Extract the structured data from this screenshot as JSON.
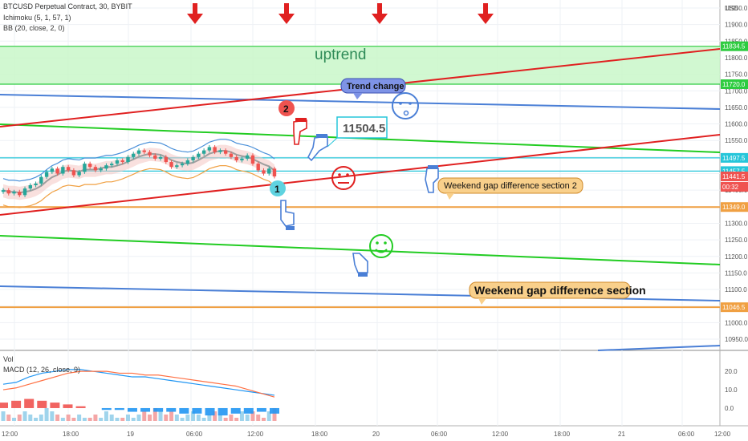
{
  "header": {
    "symbol_line": "BTCUSD Perpetual Contract, 30, BYBIT",
    "indicator_1": "Ichimoku (5, 1, 57, 1)",
    "indicator_2": "BB (20, close, 2, 0)"
  },
  "lower_pane": {
    "vol_label": "Vol",
    "macd_label": "MACD (12, 26, close, 9)"
  },
  "price_axis": {
    "unit_label": "USD",
    "ticks": [
      "11950.0",
      "11900.0",
      "11850.0",
      "11800.0",
      "11750.0",
      "11700.0",
      "11650.0",
      "11600.0",
      "11550.0",
      "11500.0",
      "11450.0",
      "11400.0",
      "11350.0",
      "11300.0",
      "11250.0",
      "11200.0",
      "11150.0",
      "11100.0",
      "11050.0",
      "11000.0",
      "10950.0"
    ],
    "markers": [
      {
        "text": "11834.5",
        "color": "#2ecc40"
      },
      {
        "text": "11720.0",
        "color": "#2ecc40"
      },
      {
        "text": "11497.5",
        "color": "#26c6da"
      },
      {
        "text": "11457.5",
        "color": "#26c6da"
      },
      {
        "text": "11441.5",
        "color": "#ef5350"
      },
      {
        "text": "00:32",
        "color": "#ef5350"
      },
      {
        "text": "11349.0",
        "color": "#f0a042"
      },
      {
        "text": "11046.5",
        "color": "#f0a042"
      }
    ]
  },
  "macd_axis": {
    "ticks": [
      "20.0",
      "10.0",
      "0.0"
    ]
  },
  "time_axis": {
    "ticks": [
      "12:00",
      "18:00",
      "19",
      "06:00",
      "12:00",
      "18:00",
      "20",
      "06:00",
      "12:00",
      "18:00",
      "21",
      "06:00",
      "12:00"
    ]
  },
  "annotations": {
    "uptrend": "uptrend",
    "trend_change": "Trend change",
    "price_box": "11504.5",
    "gap2": "Weekend gap difference section 2",
    "gap1": "Weekend gap difference section",
    "badge_1": "1",
    "badge_2": "2"
  },
  "chart_data": {
    "type": "candlestick",
    "instrument": "BTCUSD Perpetual Contract",
    "interval": "30",
    "exchange": "BYBIT",
    "ylim": [
      10925,
      11960
    ],
    "last_price": 11441.5,
    "horizontal_levels": [
      11834.5,
      11720.0,
      11497.5,
      11457.5,
      11349.0,
      11046.5
    ],
    "shaded_zone": [
      11720.0,
      11834.5
    ],
    "price_closes": [
      11400,
      11390,
      11395,
      11385,
      11405,
      11415,
      11420,
      11440,
      11455,
      11465,
      11450,
      11470,
      11460,
      11445,
      11455,
      11480,
      11470,
      11460,
      11465,
      11475,
      11480,
      11490,
      11485,
      11500,
      11510,
      11520,
      11515,
      11505,
      11495,
      11500,
      11485,
      11470,
      11475,
      11480,
      11490,
      11500,
      11510,
      11520,
      11530,
      11515,
      11520,
      11510,
      11500,
      11490,
      11495,
      11505,
      11480,
      11460,
      11450,
      11465,
      11441.5
    ],
    "volume": [
      3,
      2,
      1,
      2,
      3,
      2,
      1,
      2,
      4,
      3,
      2,
      1,
      2,
      1,
      2,
      1,
      1,
      2,
      1,
      3,
      2,
      1,
      1,
      2,
      1,
      2,
      3,
      2,
      4,
      3,
      2,
      3,
      2,
      1,
      2,
      3,
      2,
      1,
      2,
      3,
      2,
      1,
      2,
      1,
      3,
      2,
      3,
      2,
      1,
      3,
      4
    ],
    "macd_ylim": [
      -7,
      24
    ],
    "macd_line": [
      13,
      14,
      17,
      19,
      20,
      21,
      21,
      20,
      19,
      18,
      17,
      17,
      16,
      15,
      14,
      13,
      12,
      11,
      10,
      9,
      8,
      7
    ],
    "macd_signal": [
      10,
      11,
      13,
      15,
      17,
      19,
      20,
      20,
      20,
      19,
      19,
      18,
      18,
      17,
      16,
      15,
      14,
      13,
      12,
      10,
      8,
      6
    ],
    "macd_histogram": [
      3,
      4,
      5,
      4,
      3,
      2,
      1,
      0,
      -1,
      -1,
      -2,
      -2,
      -2,
      -2,
      -3,
      -3,
      -4,
      -4,
      -3,
      -3,
      -2,
      -3
    ]
  }
}
